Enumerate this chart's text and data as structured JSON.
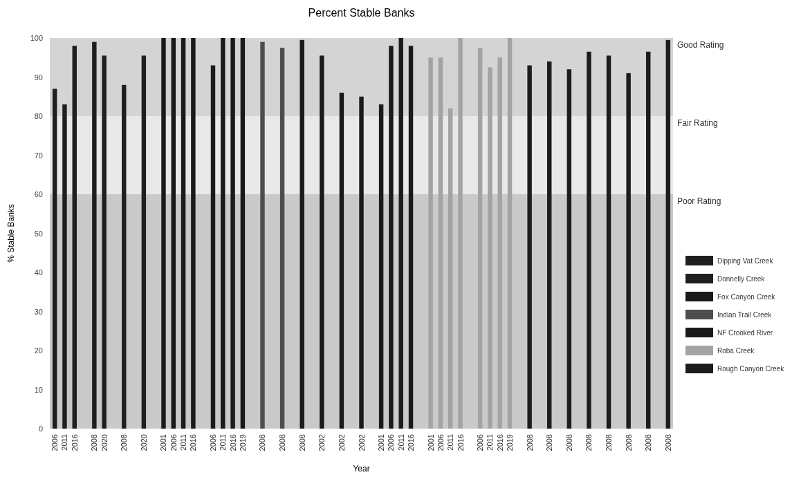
{
  "chart_data": {
    "type": "bar",
    "title": "Percent Stable Banks",
    "xlabel": "Year",
    "ylabel": "% Stable Banks",
    "categories": [
      "2006",
      "2011",
      "2016",
      null,
      "2008",
      "2020",
      null,
      "2008",
      null,
      "2020",
      null,
      "2001",
      "2006",
      "2011",
      "2016",
      null,
      "2006",
      "2011",
      "2016",
      "2019",
      null,
      "2008",
      null,
      "2008",
      null,
      "2008",
      null,
      "2002",
      null,
      "2002",
      null,
      "2002",
      null,
      "2001",
      "2006",
      "2011",
      "2016",
      null,
      "2001",
      "2006",
      "2011",
      "2016",
      null,
      "2006",
      "2011",
      "2016",
      "2019",
      null,
      "2008",
      null,
      "2008",
      null,
      "2008",
      null,
      "2008",
      null,
      "2008",
      null,
      "2008",
      null,
      "2008",
      null,
      "2008"
    ],
    "series": [
      {
        "name": "Dipping Vat Creek",
        "color": "#1f1f1f",
        "values": [
          87,
          83,
          98,
          null,
          null,
          null,
          null,
          null,
          null,
          null,
          null,
          null,
          null,
          null,
          null,
          null,
          null,
          null,
          null,
          null,
          null,
          null,
          null,
          null,
          null,
          null,
          null,
          null,
          null,
          null,
          null,
          null,
          null,
          null,
          null,
          null,
          null,
          null,
          null,
          null,
          null,
          null,
          null,
          null,
          null,
          null,
          null,
          null,
          null,
          null,
          null,
          null,
          null,
          null,
          null,
          null,
          null,
          null,
          null,
          null,
          null,
          null,
          null
        ]
      },
      {
        "name": "Donnelly Creek",
        "color": "#1f1f1f",
        "values": [
          null,
          null,
          null,
          null,
          99,
          95.5,
          null,
          88,
          null,
          95.5,
          null,
          null,
          null,
          null,
          null,
          null,
          null,
          null,
          null,
          null,
          null,
          null,
          null,
          null,
          null,
          null,
          null,
          null,
          null,
          null,
          null,
          null,
          null,
          null,
          null,
          null,
          null,
          null,
          null,
          null,
          null,
          null,
          null,
          null,
          null,
          null,
          null,
          null,
          null,
          null,
          null,
          null,
          null,
          null,
          null,
          null,
          null,
          null,
          null,
          null,
          null,
          null,
          null
        ]
      },
      {
        "name": "Fox Canyon Creek",
        "color": "#1a1a1a",
        "values": [
          null,
          null,
          null,
          null,
          null,
          null,
          null,
          null,
          null,
          null,
          null,
          100,
          100,
          100,
          100,
          null,
          93,
          100,
          100,
          100,
          null,
          null,
          null,
          null,
          null,
          null,
          null,
          null,
          null,
          null,
          null,
          null,
          null,
          null,
          null,
          null,
          null,
          null,
          null,
          null,
          null,
          null,
          null,
          null,
          null,
          null,
          null,
          null,
          null,
          null,
          null,
          null,
          null,
          null,
          null,
          null,
          null,
          null,
          null,
          null,
          null,
          null,
          null
        ]
      },
      {
        "name": "Indian Trail Creek",
        "color": "#4d4d4d",
        "values": [
          null,
          null,
          null,
          null,
          null,
          null,
          null,
          null,
          null,
          null,
          null,
          null,
          null,
          null,
          null,
          null,
          null,
          null,
          null,
          null,
          null,
          99,
          null,
          97.5,
          null,
          null,
          null,
          null,
          null,
          null,
          null,
          null,
          null,
          null,
          null,
          null,
          null,
          null,
          null,
          null,
          null,
          null,
          null,
          null,
          null,
          null,
          null,
          null,
          null,
          null,
          null,
          null,
          null,
          null,
          null,
          null,
          null,
          null,
          null,
          null,
          null,
          null,
          null
        ]
      },
      {
        "name": "NF Crooked River",
        "color": "#1a1a1a",
        "values": [
          null,
          null,
          null,
          null,
          null,
          null,
          null,
          null,
          null,
          null,
          null,
          null,
          null,
          null,
          null,
          null,
          null,
          null,
          null,
          null,
          null,
          null,
          null,
          null,
          null,
          99.5,
          null,
          95.5,
          null,
          86,
          null,
          85,
          null,
          83,
          98,
          100,
          98,
          null,
          null,
          null,
          null,
          null,
          null,
          null,
          null,
          null,
          null,
          null,
          null,
          null,
          null,
          null,
          null,
          null,
          null,
          null,
          null,
          null,
          null,
          null,
          null,
          null,
          null
        ]
      },
      {
        "name": "Roba Creek",
        "color": "#a3a3a3",
        "values": [
          null,
          null,
          null,
          null,
          null,
          null,
          null,
          null,
          null,
          null,
          null,
          null,
          null,
          null,
          null,
          null,
          null,
          null,
          null,
          null,
          null,
          null,
          null,
          null,
          null,
          null,
          null,
          null,
          null,
          null,
          null,
          null,
          null,
          null,
          null,
          null,
          null,
          null,
          95,
          95,
          82,
          100,
          null,
          97.5,
          92.5,
          95,
          100,
          null,
          null,
          null,
          null,
          null,
          null,
          null,
          null,
          null,
          null,
          null,
          null,
          null,
          null,
          null,
          null
        ]
      },
      {
        "name": "Rough Canyon Creek",
        "color": "#1c1c1c",
        "values": [
          null,
          null,
          null,
          null,
          null,
          null,
          null,
          null,
          null,
          null,
          null,
          null,
          null,
          null,
          null,
          null,
          null,
          null,
          null,
          null,
          null,
          null,
          null,
          null,
          null,
          null,
          null,
          null,
          null,
          null,
          null,
          null,
          null,
          null,
          null,
          null,
          null,
          null,
          null,
          null,
          null,
          null,
          null,
          null,
          null,
          null,
          null,
          null,
          93,
          null,
          94,
          null,
          92,
          null,
          96.5,
          null,
          95.5,
          null,
          91,
          null,
          96.5,
          null,
          99.5
        ]
      }
    ],
    "ylim": [
      0,
      100
    ],
    "yticks": [
      0,
      10,
      20,
      30,
      40,
      50,
      60,
      70,
      80,
      90,
      100
    ],
    "bands": [
      {
        "axis": "y",
        "from": 80,
        "to": 100,
        "label": "Good Rating",
        "color": "#d4d4d4"
      },
      {
        "axis": "y",
        "from": 60,
        "to": 80,
        "label": "Fair Rating",
        "color": "#e9e9e9"
      },
      {
        "axis": "y",
        "from": 0,
        "to": 60,
        "label": "Poor Rating",
        "color": "#c9c9c9"
      }
    ],
    "legend": "right"
  }
}
